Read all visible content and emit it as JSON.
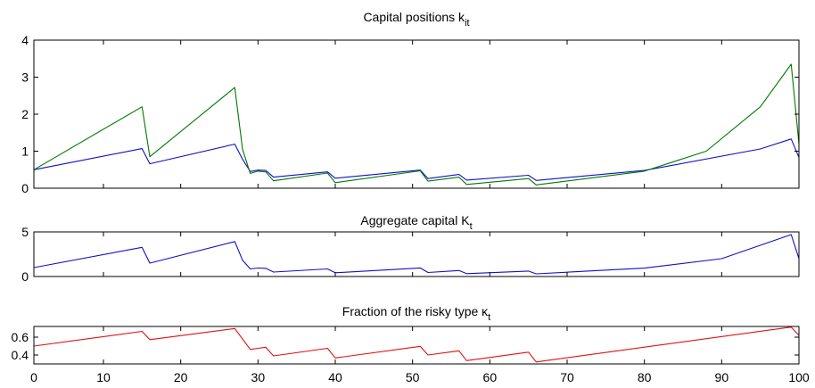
{
  "chart_data": [
    {
      "type": "line",
      "title": "Capital positions k",
      "title_subscript": "it",
      "xlabel": "",
      "ylabel": "",
      "xlim": [
        1,
        100
      ],
      "ylim": [
        0,
        4
      ],
      "yticks": [
        "0",
        "1",
        "2",
        "3",
        "4"
      ],
      "show_xtick_labels": false,
      "series": [
        {
          "color": "#1010c8",
          "x": [
            1,
            15,
            16,
            27,
            28,
            29,
            30,
            31,
            32,
            39,
            40,
            51,
            52,
            56,
            57,
            65,
            66,
            80,
            95,
            99,
            100
          ],
          "y": [
            0.5,
            1.07,
            0.66,
            1.19,
            0.78,
            0.45,
            0.49,
            0.48,
            0.3,
            0.44,
            0.27,
            0.49,
            0.26,
            0.37,
            0.22,
            0.35,
            0.21,
            0.48,
            1.06,
            1.33,
            0.83
          ]
        },
        {
          "color": "#007800",
          "x": [
            1,
            15,
            16,
            27,
            28,
            29,
            30,
            31,
            32,
            39,
            40,
            51,
            52,
            56,
            57,
            65,
            66,
            80,
            88,
            95,
            99,
            100
          ],
          "y": [
            0.5,
            2.2,
            0.85,
            2.72,
            1.05,
            0.4,
            0.46,
            0.44,
            0.2,
            0.41,
            0.15,
            0.47,
            0.19,
            0.3,
            0.1,
            0.26,
            0.09,
            0.46,
            1.0,
            2.2,
            3.35,
            1.2
          ]
        }
      ]
    },
    {
      "type": "line",
      "title": "Aggregate capital K",
      "title_subscript": "t",
      "xlabel": "",
      "ylabel": "",
      "xlim": [
        1,
        100
      ],
      "ylim": [
        0,
        5
      ],
      "yticks": [
        "0",
        "5"
      ],
      "show_xtick_labels": false,
      "series": [
        {
          "color": "#1010c8",
          "x": [
            1,
            15,
            16,
            27,
            28,
            29,
            30,
            31,
            32,
            39,
            40,
            51,
            52,
            56,
            57,
            65,
            66,
            80,
            90,
            99,
            100
          ],
          "y": [
            1.0,
            3.27,
            1.5,
            3.92,
            1.83,
            0.85,
            0.95,
            0.92,
            0.5,
            0.85,
            0.42,
            0.96,
            0.45,
            0.67,
            0.32,
            0.61,
            0.3,
            0.94,
            2.0,
            4.7,
            2.0
          ]
        }
      ]
    },
    {
      "type": "line",
      "title": "Fraction of the risky type κ",
      "title_subscript": "t",
      "xlabel": "",
      "ylabel": "",
      "xlim": [
        1,
        100
      ],
      "ylim": [
        0.3,
        0.72
      ],
      "yticks": [
        "0.4",
        "0.6"
      ],
      "xticks": [
        "0",
        "10",
        "20",
        "30",
        "40",
        "50",
        "60",
        "70",
        "80",
        "90",
        "100"
      ],
      "show_xtick_labels": true,
      "series": [
        {
          "color": "#e01010",
          "x": [
            1,
            15,
            16,
            27,
            29,
            30,
            31,
            32,
            39,
            40,
            51,
            52,
            56,
            57,
            65,
            66,
            99,
            100
          ],
          "y": [
            0.5,
            0.665,
            0.572,
            0.697,
            0.462,
            0.475,
            0.487,
            0.39,
            0.475,
            0.367,
            0.497,
            0.4,
            0.447,
            0.337,
            0.432,
            0.322,
            0.713,
            0.62
          ]
        }
      ]
    }
  ]
}
